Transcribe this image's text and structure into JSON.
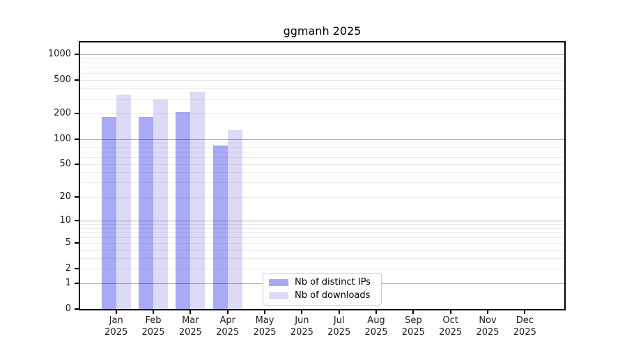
{
  "title": "ggmanh 2025",
  "chart_data": {
    "type": "bar",
    "title": "ggmanh 2025",
    "categories": [
      "Jan",
      "Feb",
      "Mar",
      "Apr",
      "May",
      "Jun",
      "Jul",
      "Aug",
      "Sep",
      "Oct",
      "Nov",
      "Dec"
    ],
    "year_label": "2025",
    "series": [
      {
        "name": "Nb of distinct IPs",
        "color": "#a9a9f5",
        "values": [
          184,
          183,
          207,
          83,
          null,
          null,
          null,
          null,
          null,
          null,
          null,
          null
        ]
      },
      {
        "name": "Nb of downloads",
        "color": "#dbdbf8",
        "values": [
          337,
          295,
          363,
          128,
          null,
          null,
          null,
          null,
          null,
          null,
          null,
          null
        ]
      }
    ],
    "yscale": "log10(value+1)",
    "yticks": [
      0,
      1,
      2,
      5,
      10,
      20,
      50,
      100,
      200,
      500,
      1000
    ],
    "major_gridlines": [
      1,
      10,
      100,
      1000
    ],
    "minor_gridline_multipliers": [
      2,
      3,
      4,
      5,
      6,
      7,
      8,
      9
    ],
    "minor_gridline_decades": [
      1,
      10,
      100
    ],
    "ylim": [
      0,
      1386
    ],
    "grid": true,
    "legend_position": "lower-center-left",
    "colors": {
      "axis": "#000000",
      "major_grid": "#b9b9b9",
      "minor_grid": "#e9e9e9",
      "text": "#1a1a1a",
      "background": "#ffffff"
    }
  }
}
